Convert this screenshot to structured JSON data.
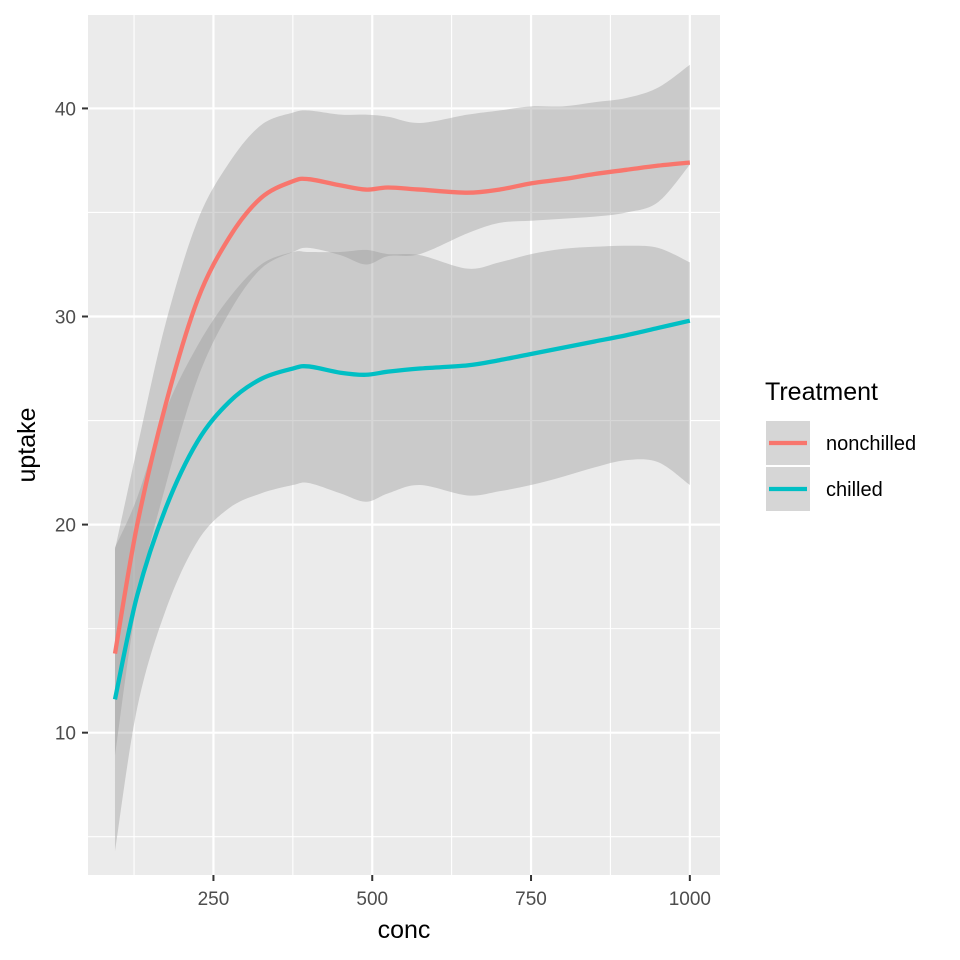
{
  "chart_data": {
    "type": "line",
    "xlabel": "conc",
    "ylabel": "uptake",
    "xlim": [
      52.5,
      1047.5
    ],
    "ylim": [
      3.16,
      44.49
    ],
    "x_ticks": [
      250,
      500,
      750,
      1000
    ],
    "y_ticks": [
      10,
      20,
      30,
      40
    ],
    "grid": true,
    "legend": {
      "title": "Treatment",
      "placement": "right"
    },
    "band_color": "#999999",
    "panel_background": "#ebebeb",
    "series": [
      {
        "name": "nonchilled",
        "color": "#f8766d",
        "x": [
          95,
          130,
          175,
          225,
          275,
          325,
          375,
          400,
          450,
          490,
          525,
          575,
          650,
          700,
          750,
          800,
          850,
          900,
          950,
          1000
        ],
        "y": [
          13.8,
          20.0,
          25.8,
          30.8,
          33.8,
          35.7,
          36.5,
          36.6,
          36.3,
          36.1,
          36.2,
          36.1,
          35.95,
          36.1,
          36.4,
          36.6,
          36.85,
          37.05,
          37.25,
          37.4
        ],
        "lower": [
          8.9,
          16.3,
          21.9,
          27.0,
          30.2,
          32.3,
          33.1,
          33.3,
          32.95,
          32.5,
          32.9,
          33.0,
          34.0,
          34.5,
          34.6,
          34.7,
          34.8,
          35.0,
          35.5,
          37.3
        ],
        "upper": [
          18.8,
          23.7,
          29.7,
          34.6,
          37.4,
          39.2,
          39.8,
          39.9,
          39.7,
          39.7,
          39.6,
          39.3,
          39.7,
          39.9,
          40.1,
          40.1,
          40.3,
          40.5,
          41.0,
          42.1
        ]
      },
      {
        "name": "chilled",
        "color": "#00bfc4",
        "x": [
          95,
          130,
          175,
          225,
          275,
          325,
          375,
          400,
          450,
          490,
          525,
          575,
          650,
          700,
          750,
          800,
          850,
          900,
          950,
          1000
        ],
        "y": [
          11.6,
          16.6,
          20.8,
          24.0,
          25.9,
          27.0,
          27.5,
          27.6,
          27.3,
          27.2,
          27.35,
          27.5,
          27.65,
          27.9,
          28.2,
          28.5,
          28.8,
          29.1,
          29.45,
          29.8
        ],
        "lower": [
          4.3,
          11.2,
          15.9,
          19.2,
          20.8,
          21.5,
          21.9,
          22.0,
          21.5,
          21.1,
          21.5,
          21.9,
          21.4,
          21.6,
          21.9,
          22.3,
          22.75,
          23.1,
          23.0,
          21.9
        ],
        "upper": [
          18.9,
          21.3,
          25.5,
          28.6,
          30.9,
          32.5,
          33.1,
          33.1,
          33.1,
          33.2,
          33.0,
          32.95,
          32.3,
          32.6,
          33.0,
          33.25,
          33.35,
          33.4,
          33.3,
          32.6
        ]
      }
    ]
  }
}
